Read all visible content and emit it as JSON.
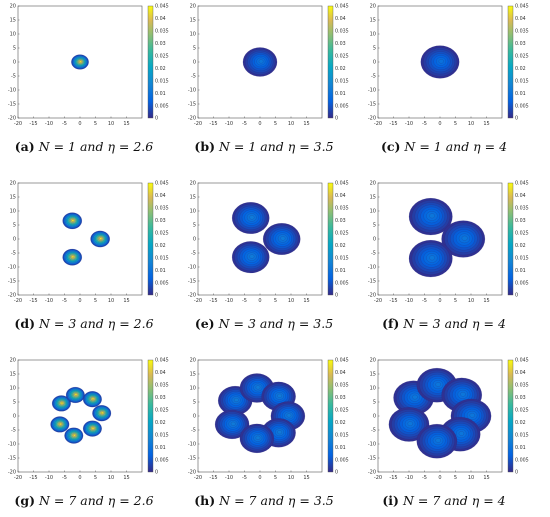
{
  "figure": {
    "panels": [
      {
        "label": "(a)",
        "caption_text": "N = 1 and η = 2.6"
      },
      {
        "label": "(b)",
        "caption_text": "N = 1 and η = 3.5"
      },
      {
        "label": "(c)",
        "caption_text": "N = 1 and η = 4"
      },
      {
        "label": "(d)",
        "caption_text": "N = 3 and η = 2.6"
      },
      {
        "label": "(e)",
        "caption_text": "N = 3 and η = 3.5"
      },
      {
        "label": "(f)",
        "caption_text": "N = 3 and η = 4"
      },
      {
        "label": "(g)",
        "caption_text": "N = 7 and η = 2.6"
      },
      {
        "label": "(h)",
        "caption_text": "N = 7 and η = 3.5"
      },
      {
        "label": "(i)",
        "caption_text": "N = 7 and η = 4"
      }
    ]
  },
  "chart_data": [
    {
      "type": "heatmap",
      "N": 1,
      "eta": 2.6,
      "xlim": [
        -20,
        20
      ],
      "ylim": [
        -20,
        20
      ],
      "xticks": [
        "-20",
        "-15",
        "-10",
        "-5",
        "0",
        "5",
        "10",
        "15"
      ],
      "yticks": [
        "20",
        "15",
        "10",
        "5",
        "0",
        "-5",
        "-10",
        "-15",
        "-20"
      ],
      "colorbar": {
        "range": [
          0,
          0.045
        ],
        "ticks": [
          "0.045",
          "0.04",
          "0.035",
          "0.03",
          "0.025",
          "0.02",
          "0.015",
          "0.01",
          "0.005",
          "0"
        ]
      },
      "blobs": [
        {
          "x": 0,
          "y": 0,
          "r": 2.8,
          "peak": 0.045
        }
      ]
    },
    {
      "type": "heatmap",
      "N": 1,
      "eta": 3.5,
      "xlim": [
        -20,
        20
      ],
      "ylim": [
        -20,
        20
      ],
      "xticks": [
        "-20",
        "-15",
        "-10",
        "-5",
        "0",
        "5",
        "10",
        "15"
      ],
      "yticks": [
        "20",
        "15",
        "10",
        "5",
        "0",
        "-5",
        "-10",
        "-15",
        "-20"
      ],
      "colorbar": {
        "range": [
          0,
          0.045
        ],
        "ticks": [
          "0.045",
          "0.04",
          "0.035",
          "0.03",
          "0.025",
          "0.02",
          "0.015",
          "0.01",
          "0.005",
          "0"
        ]
      },
      "blobs": [
        {
          "x": 0,
          "y": 0,
          "r": 5.5,
          "peak": 0.011
        }
      ]
    },
    {
      "type": "heatmap",
      "N": 1,
      "eta": 4,
      "xlim": [
        -20,
        20
      ],
      "ylim": [
        -20,
        20
      ],
      "xticks": [
        "-20",
        "-15",
        "-10",
        "-5",
        "0",
        "5",
        "10",
        "15"
      ],
      "yticks": [
        "20",
        "15",
        "10",
        "5",
        "0",
        "-5",
        "-10",
        "-15",
        "-20"
      ],
      "colorbar": {
        "range": [
          0,
          0.045
        ],
        "ticks": [
          "0.045",
          "0.04",
          "0.035",
          "0.03",
          "0.025",
          "0.02",
          "0.015",
          "0.01",
          "0.005",
          "0"
        ]
      },
      "blobs": [
        {
          "x": 0,
          "y": 0,
          "r": 6.2,
          "peak": 0.01
        }
      ]
    },
    {
      "type": "heatmap",
      "N": 3,
      "eta": 2.6,
      "xlim": [
        -20,
        20
      ],
      "ylim": [
        -20,
        20
      ],
      "xticks": [
        "-20",
        "-15",
        "-10",
        "-5",
        "0",
        "5",
        "10",
        "15"
      ],
      "yticks": [
        "20",
        "15",
        "10",
        "5",
        "0",
        "-5",
        "-10",
        "-15",
        "-20"
      ],
      "colorbar": {
        "range": [
          0,
          0.045
        ],
        "ticks": [
          "0.045",
          "0.04",
          "0.035",
          "0.03",
          "0.025",
          "0.02",
          "0.015",
          "0.01",
          "0.005",
          "0"
        ]
      },
      "blobs": [
        {
          "x": -2.5,
          "y": 6.5,
          "r": 3.1,
          "peak": 0.045
        },
        {
          "x": 6.5,
          "y": 0,
          "r": 3.1,
          "peak": 0.045
        },
        {
          "x": -2.5,
          "y": -6.5,
          "r": 3.1,
          "peak": 0.045
        }
      ]
    },
    {
      "type": "heatmap",
      "N": 3,
      "eta": 3.5,
      "xlim": [
        -20,
        20
      ],
      "ylim": [
        -20,
        20
      ],
      "xticks": [
        "-20",
        "-15",
        "-10",
        "-5",
        "0",
        "5",
        "10",
        "15"
      ],
      "yticks": [
        "20",
        "15",
        "10",
        "5",
        "0",
        "-5",
        "-10",
        "-15",
        "-20"
      ],
      "colorbar": {
        "range": [
          0,
          0.045
        ],
        "ticks": [
          "0.045",
          "0.04",
          "0.035",
          "0.03",
          "0.025",
          "0.02",
          "0.015",
          "0.01",
          "0.005",
          "0"
        ]
      },
      "blobs": [
        {
          "x": -3,
          "y": 7.5,
          "r": 6,
          "peak": 0.012
        },
        {
          "x": 7,
          "y": 0,
          "r": 6,
          "peak": 0.012
        },
        {
          "x": -3,
          "y": -6.5,
          "r": 6,
          "peak": 0.012
        }
      ]
    },
    {
      "type": "heatmap",
      "N": 3,
      "eta": 4,
      "xlim": [
        -20,
        20
      ],
      "ylim": [
        -20,
        20
      ],
      "xticks": [
        "-20",
        "-15",
        "-10",
        "-5",
        "0",
        "5",
        "10",
        "15"
      ],
      "yticks": [
        "20",
        "15",
        "10",
        "5",
        "0",
        "-5",
        "-10",
        "-15",
        "-20"
      ],
      "colorbar": {
        "range": [
          0,
          0.045
        ],
        "ticks": [
          "0.045",
          "0.04",
          "0.035",
          "0.03",
          "0.025",
          "0.02",
          "0.015",
          "0.01",
          "0.005",
          "0"
        ]
      },
      "blobs": [
        {
          "x": -3,
          "y": 8,
          "r": 7,
          "peak": 0.011
        },
        {
          "x": 7.5,
          "y": 0,
          "r": 7,
          "peak": 0.011
        },
        {
          "x": -3,
          "y": -7,
          "r": 7,
          "peak": 0.011
        }
      ]
    },
    {
      "type": "heatmap",
      "N": 7,
      "eta": 2.6,
      "xlim": [
        -20,
        20
      ],
      "ylim": [
        -20,
        20
      ],
      "xticks": [
        "-20",
        "-15",
        "-10",
        "-5",
        "0",
        "5",
        "10",
        "15"
      ],
      "yticks": [
        "20",
        "15",
        "10",
        "5",
        "0",
        "-5",
        "-10",
        "-15",
        "-20"
      ],
      "colorbar": {
        "range": [
          0,
          0.045
        ],
        "ticks": [
          "0.045",
          "0.04",
          "0.035",
          "0.03",
          "0.025",
          "0.02",
          "0.015",
          "0.01",
          "0.005",
          "0"
        ]
      },
      "blobs": [
        {
          "x": -6,
          "y": 4.5,
          "r": 3,
          "peak": 0.045
        },
        {
          "x": -1.5,
          "y": 7.5,
          "r": 3,
          "peak": 0.045
        },
        {
          "x": 4,
          "y": 6,
          "r": 3,
          "peak": 0.045
        },
        {
          "x": 7,
          "y": 1,
          "r": 3,
          "peak": 0.045
        },
        {
          "x": -6.5,
          "y": -3,
          "r": 3,
          "peak": 0.045
        },
        {
          "x": 4,
          "y": -4.5,
          "r": 3,
          "peak": 0.045
        },
        {
          "x": -2,
          "y": -7,
          "r": 3,
          "peak": 0.045
        }
      ]
    },
    {
      "type": "heatmap",
      "N": 7,
      "eta": 3.5,
      "xlim": [
        -20,
        20
      ],
      "ylim": [
        -20,
        20
      ],
      "xticks": [
        "-20",
        "-15",
        "-10",
        "-5",
        "0",
        "5",
        "10",
        "15"
      ],
      "yticks": [
        "20",
        "15",
        "10",
        "5",
        "0",
        "-5",
        "-10",
        "-15",
        "-20"
      ],
      "colorbar": {
        "range": [
          0,
          0.045
        ],
        "ticks": [
          "0.045",
          "0.04",
          "0.035",
          "0.03",
          "0.025",
          "0.02",
          "0.015",
          "0.01",
          "0.005",
          "0"
        ]
      },
      "blobs": [
        {
          "x": -8,
          "y": 5.5,
          "r": 5.5,
          "peak": 0.012
        },
        {
          "x": -1,
          "y": 10,
          "r": 5.5,
          "peak": 0.012
        },
        {
          "x": 6,
          "y": 7,
          "r": 5.5,
          "peak": 0.012
        },
        {
          "x": 9,
          "y": 0,
          "r": 5.5,
          "peak": 0.012
        },
        {
          "x": -9,
          "y": -3,
          "r": 5.5,
          "peak": 0.012
        },
        {
          "x": 6,
          "y": -6,
          "r": 5.5,
          "peak": 0.012
        },
        {
          "x": -1,
          "y": -8,
          "r": 5.5,
          "peak": 0.012
        }
      ]
    },
    {
      "type": "heatmap",
      "N": 7,
      "eta": 4,
      "xlim": [
        -20,
        20
      ],
      "ylim": [
        -20,
        20
      ],
      "xticks": [
        "-20",
        "-15",
        "-10",
        "-5",
        "0",
        "5",
        "10",
        "15"
      ],
      "yticks": [
        "20",
        "15",
        "10",
        "5",
        "0",
        "-5",
        "-10",
        "-15",
        "-20"
      ],
      "colorbar": {
        "range": [
          0,
          0.045
        ],
        "ticks": [
          "0.045",
          "0.04",
          "0.035",
          "0.03",
          "0.025",
          "0.02",
          "0.015",
          "0.01",
          "0.005",
          "0"
        ]
      },
      "blobs": [
        {
          "x": -8.5,
          "y": 6.5,
          "r": 6.5,
          "peak": 0.011
        },
        {
          "x": -1,
          "y": 11,
          "r": 6.5,
          "peak": 0.011
        },
        {
          "x": 7,
          "y": 7.5,
          "r": 6.5,
          "peak": 0.011
        },
        {
          "x": 10,
          "y": 0,
          "r": 6.5,
          "peak": 0.011
        },
        {
          "x": -10,
          "y": -3,
          "r": 6.5,
          "peak": 0.011
        },
        {
          "x": 6.5,
          "y": -6.5,
          "r": 6.5,
          "peak": 0.011
        },
        {
          "x": -1,
          "y": -9,
          "r": 6.5,
          "peak": 0.011
        }
      ]
    }
  ]
}
